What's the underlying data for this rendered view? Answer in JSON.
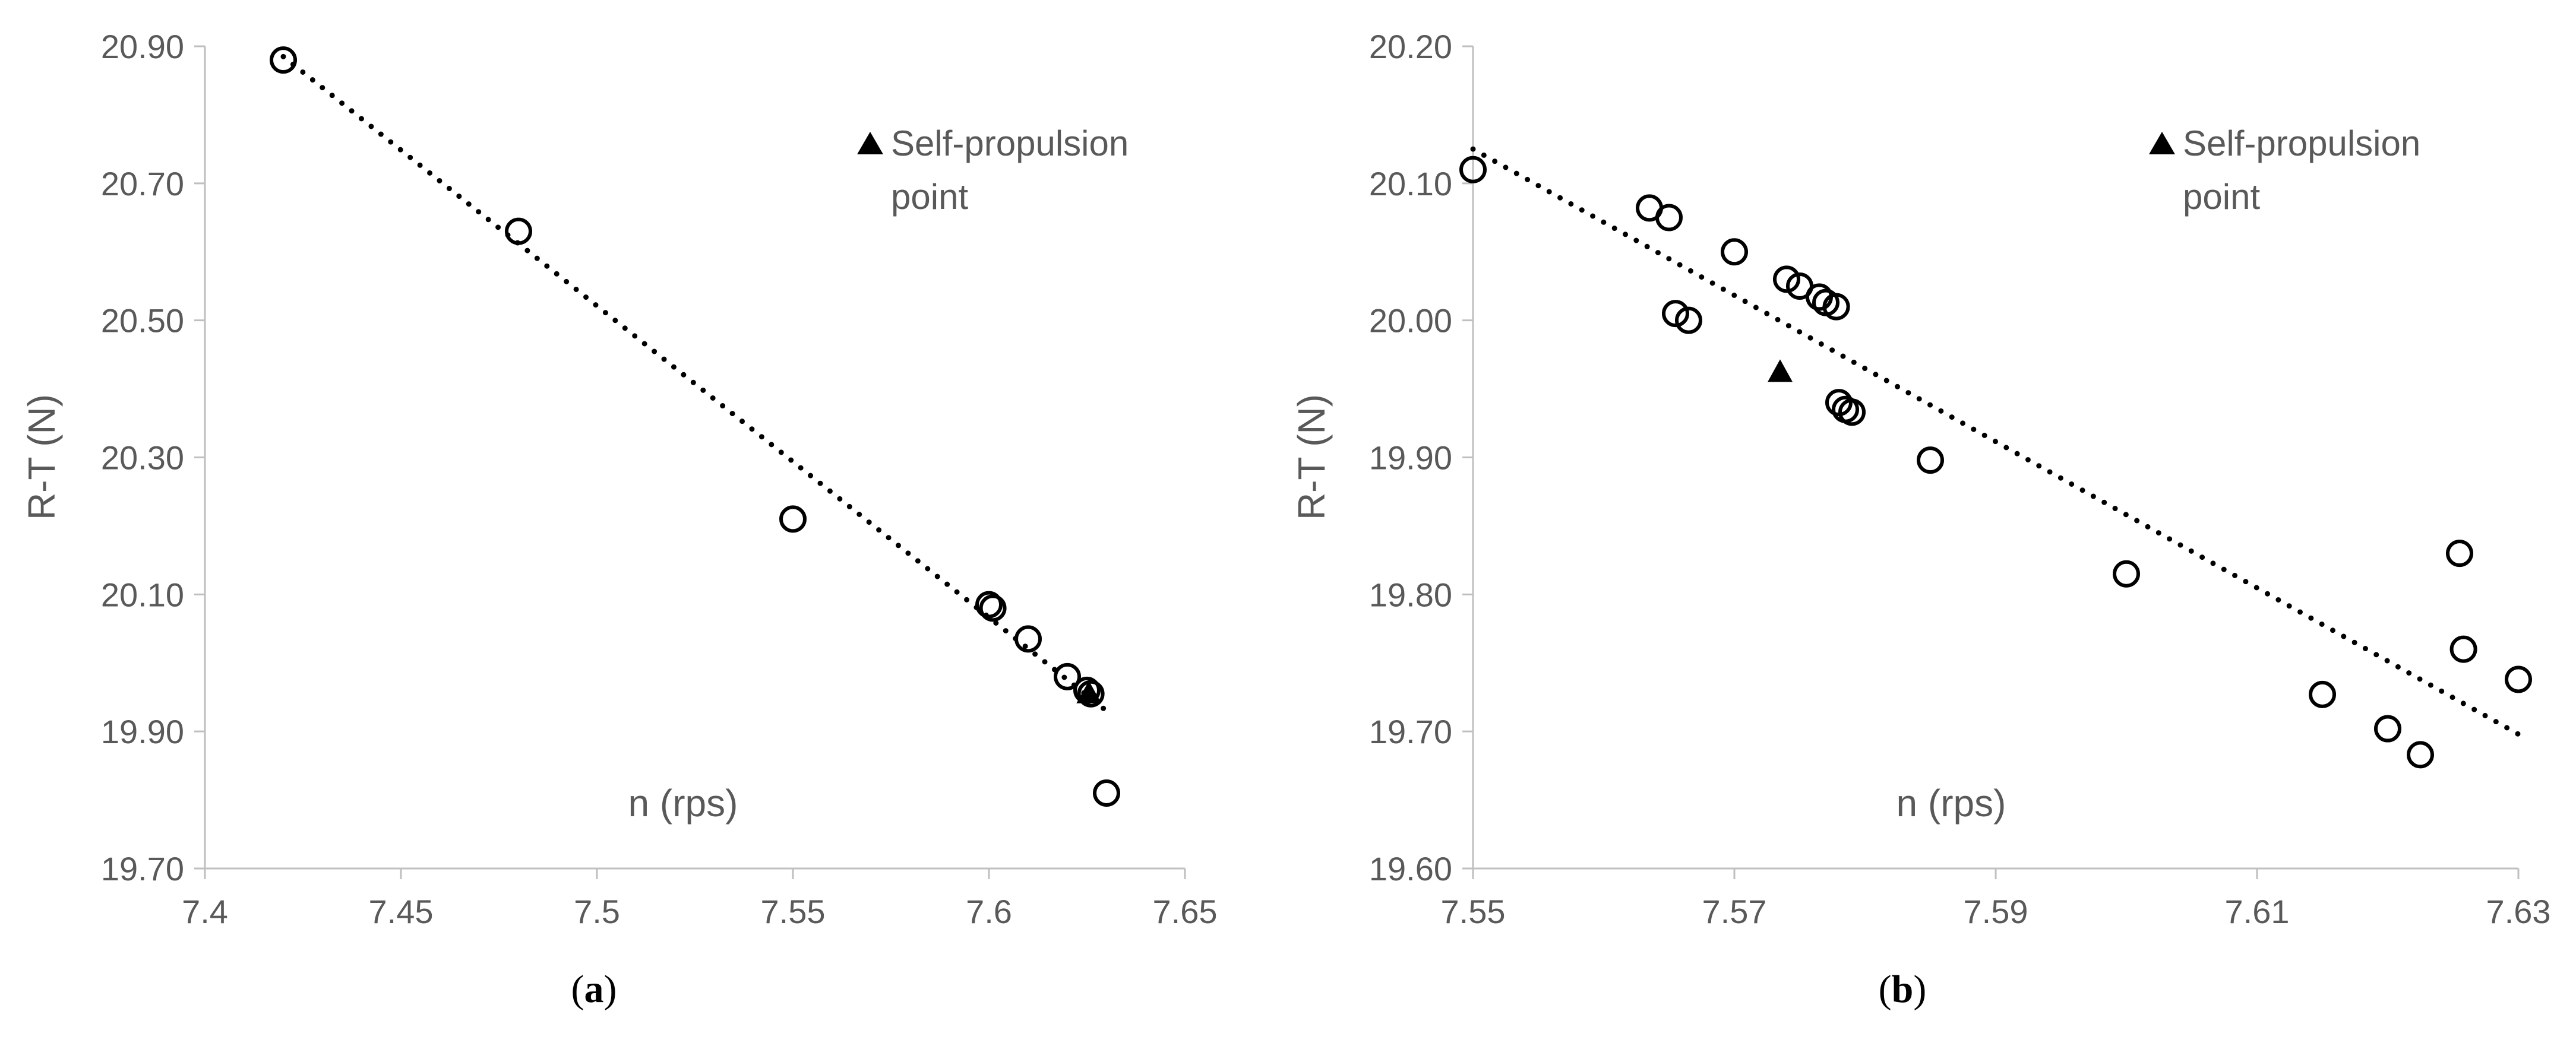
{
  "chart_data": [
    {
      "type": "scatter",
      "panel_label": "a",
      "xlabel": "n (rps)",
      "ylabel": "R-T (N)",
      "xlim": [
        7.4,
        7.65
      ],
      "ylim": [
        19.7,
        20.9
      ],
      "x_ticks": [
        "7.4",
        "7.45",
        "7.5",
        "7.55",
        "7.6",
        "7.65"
      ],
      "y_ticks": [
        "19.70",
        "19.90",
        "20.10",
        "20.30",
        "20.50",
        "20.70",
        "20.90"
      ],
      "legend": {
        "label_line1": "Self-propulsion",
        "label_line2": "point",
        "placement": "top-right"
      },
      "series": [
        {
          "marker": "open-circle",
          "x": [
            7.42,
            7.48,
            7.55,
            7.6,
            7.601,
            7.61,
            7.62,
            7.625,
            7.626,
            7.63
          ],
          "y": [
            20.88,
            20.63,
            20.21,
            20.085,
            20.08,
            20.035,
            19.98,
            19.96,
            19.955,
            19.81
          ]
        },
        {
          "marker": "filled-triangle",
          "x": [
            7.6255
          ],
          "y": [
            19.955
          ]
        }
      ],
      "trendline": {
        "style": "dotted",
        "x": [
          7.42,
          7.63
        ],
        "y": [
          20.885,
          19.93
        ]
      }
    },
    {
      "type": "scatter",
      "panel_label": "b",
      "xlabel": "n (rps)",
      "ylabel": "R-T (N)",
      "xlim": [
        7.55,
        7.63
      ],
      "ylim": [
        19.6,
        20.2
      ],
      "x_ticks": [
        "7.55",
        "7.57",
        "7.59",
        "7.61",
        "7.63"
      ],
      "y_ticks": [
        "19.60",
        "19.70",
        "19.80",
        "19.90",
        "20.00",
        "20.10",
        "20.20"
      ],
      "legend": {
        "label_line1": "Self-propulsion",
        "label_line2": "point",
        "placement": "top-right"
      },
      "series": [
        {
          "marker": "open-circle",
          "x": [
            7.55,
            7.5635,
            7.565,
            7.5655,
            7.5665,
            7.57,
            7.574,
            7.575,
            7.5765,
            7.577,
            7.5778,
            7.578,
            7.5785,
            7.579,
            7.585,
            7.6,
            7.615,
            7.62,
            7.6225,
            7.6255,
            7.6258,
            7.63
          ],
          "y": [
            20.11,
            20.082,
            20.075,
            20.005,
            20.0,
            20.05,
            20.03,
            20.025,
            20.017,
            20.013,
            20.01,
            19.94,
            19.935,
            19.933,
            19.898,
            19.815,
            19.727,
            19.702,
            19.683,
            19.83,
            19.76,
            19.738
          ]
        },
        {
          "marker": "filled-triangle",
          "x": [
            7.5735
          ],
          "y": [
            19.962
          ]
        }
      ],
      "trendline": {
        "style": "dotted",
        "x": [
          7.55,
          7.63
        ],
        "y": [
          20.125,
          19.698
        ]
      }
    }
  ]
}
